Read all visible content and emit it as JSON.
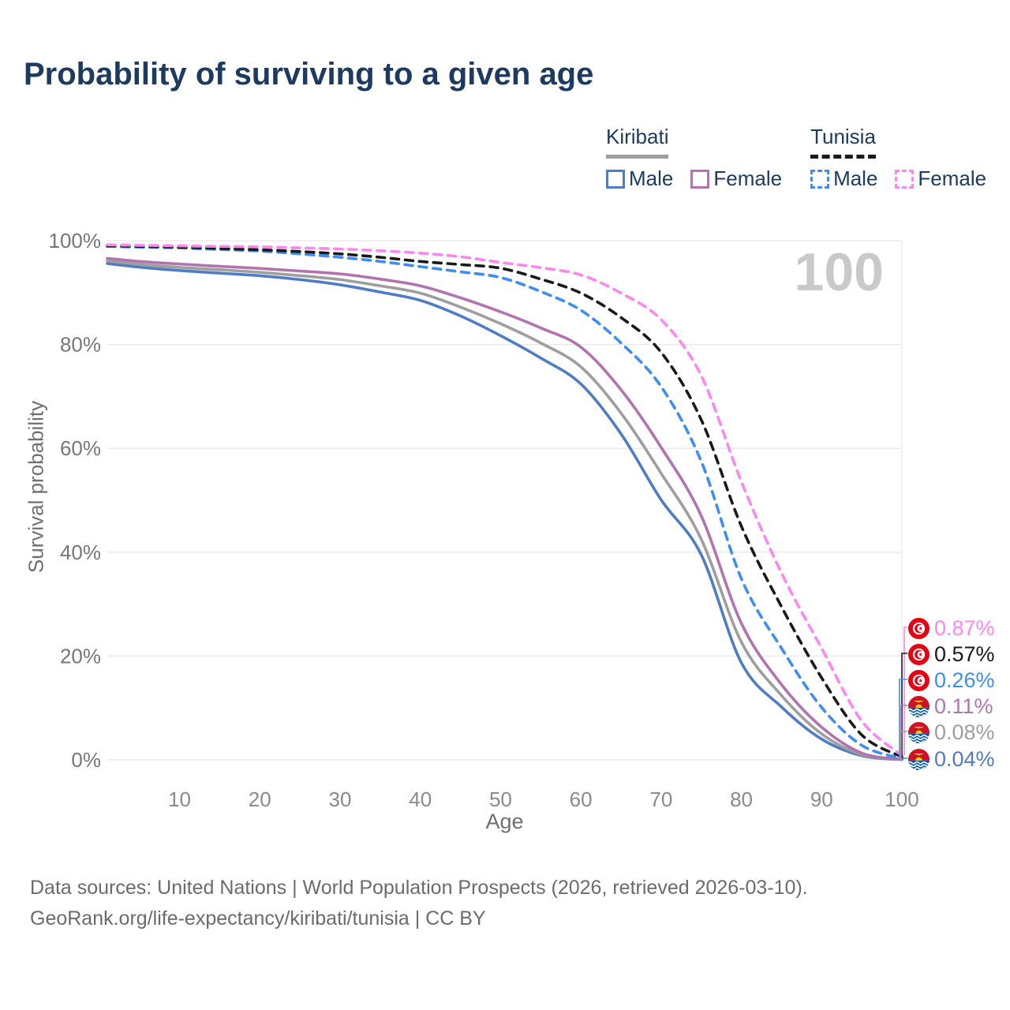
{
  "header": {
    "title": "Probability of surviving to a given age"
  },
  "legend": {
    "groups": [
      {
        "name": "Kiribati",
        "line_style": "solid",
        "underline_color": "#9e9e9e",
        "items": [
          {
            "label": "Male",
            "color": "#4f7cc4"
          },
          {
            "label": "Female",
            "color": "#b273ae"
          }
        ]
      },
      {
        "name": "Tunisia",
        "line_style": "dashed",
        "underline_color": "#1a1a1a",
        "items": [
          {
            "label": "Male",
            "color": "#3e8df2"
          },
          {
            "label": "Female",
            "color": "#fc87f0"
          }
        ]
      }
    ]
  },
  "chart_data": {
    "type": "line",
    "title": "Probability of surviving to a given age",
    "xlabel": "Age",
    "ylabel": "Survival probability",
    "xlim": [
      1,
      100
    ],
    "ylim": [
      0,
      100
    ],
    "x_ticks": [
      10,
      20,
      30,
      40,
      50,
      60,
      70,
      80,
      90,
      100
    ],
    "y_ticks": [
      0,
      20,
      40,
      60,
      80,
      100
    ],
    "y_tick_suffix": "%",
    "grid": "horizontal",
    "age_marker": 100,
    "watermark": "100",
    "x": [
      1,
      5,
      10,
      15,
      20,
      25,
      30,
      35,
      40,
      45,
      50,
      55,
      60,
      65,
      70,
      75,
      80,
      85,
      90,
      95,
      100
    ],
    "series": [
      {
        "name": "Tunisia Female",
        "country": "Tunisia",
        "sex": "Female",
        "color": "#fc87f0",
        "dashed": true,
        "flag": "tunisia",
        "end_label": "0.87%",
        "values": [
          99.2,
          99.1,
          99.0,
          98.9,
          98.8,
          98.6,
          98.4,
          98.05,
          97.6,
          96.9,
          95.8,
          94.8,
          93.4,
          89.9,
          84.8,
          74.0,
          53.6,
          36.0,
          21.5,
          7.5,
          0.87
        ]
      },
      {
        "name": "Tunisia",
        "country": "Tunisia",
        "sex": "All",
        "color": "#1a1a1a",
        "dashed": true,
        "flag": "tunisia",
        "end_label": "0.57%",
        "values": [
          99.0,
          98.9,
          98.75,
          98.5,
          98.25,
          97.9,
          97.45,
          96.8,
          96.0,
          95.4,
          94.7,
          92.6,
          89.9,
          85.2,
          78.5,
          65.5,
          45.0,
          29.5,
          15.8,
          4.8,
          0.57
        ]
      },
      {
        "name": "Tunisia Male",
        "country": "Tunisia",
        "sex": "Male",
        "color": "#3e8df2",
        "dashed": true,
        "flag": "tunisia",
        "end_label": "0.26%",
        "values": [
          98.9,
          98.75,
          98.6,
          98.3,
          98.0,
          97.45,
          96.8,
          96.0,
          95.0,
          94.0,
          92.9,
          90.2,
          86.6,
          80.3,
          71.9,
          57.5,
          34.9,
          21.5,
          10.1,
          2.8,
          0.26
        ]
      },
      {
        "name": "Kiribati Female",
        "country": "Kiribati",
        "sex": "Female",
        "color": "#b273ae",
        "dashed": false,
        "flag": "kiribati",
        "end_label": "0.11%",
        "values": [
          96.6,
          96.0,
          95.5,
          95.05,
          94.65,
          94.15,
          93.6,
          92.6,
          91.3,
          89.0,
          86.3,
          83.2,
          79.5,
          71.3,
          60.2,
          47.0,
          26.3,
          14.5,
          6.3,
          1.3,
          0.11
        ]
      },
      {
        "name": "Kiribati",
        "country": "Kiribati",
        "sex": "All",
        "color": "#9e9e9e",
        "dashed": false,
        "flag": "kiribati",
        "end_label": "0.08%",
        "values": [
          96.1,
          95.45,
          94.85,
          94.4,
          93.9,
          93.25,
          92.5,
          91.3,
          89.9,
          87.2,
          84.0,
          80.3,
          75.7,
          66.8,
          55.2,
          42.5,
          22.7,
          12.4,
          5.0,
          1.0,
          0.08
        ]
      },
      {
        "name": "Kiribati Male",
        "country": "Kiribati",
        "sex": "Male",
        "color": "#4f7cc4",
        "dashed": false,
        "flag": "kiribati",
        "end_label": "0.04%",
        "values": [
          95.6,
          94.9,
          94.25,
          93.75,
          93.25,
          92.5,
          91.5,
          90.1,
          88.5,
          85.5,
          81.7,
          77.4,
          72.4,
          62.8,
          50.1,
          39.5,
          18.7,
          10.2,
          4.0,
          0.8,
          0.04
        ]
      }
    ],
    "legend_position": "top-right"
  },
  "footer": {
    "line1": "Data sources: United Nations | World Population Prospects (2026, retrieved 2026-03-10).",
    "line2": "GeoRank.org/life-expectancy/kiribati/tunisia | CC BY"
  }
}
